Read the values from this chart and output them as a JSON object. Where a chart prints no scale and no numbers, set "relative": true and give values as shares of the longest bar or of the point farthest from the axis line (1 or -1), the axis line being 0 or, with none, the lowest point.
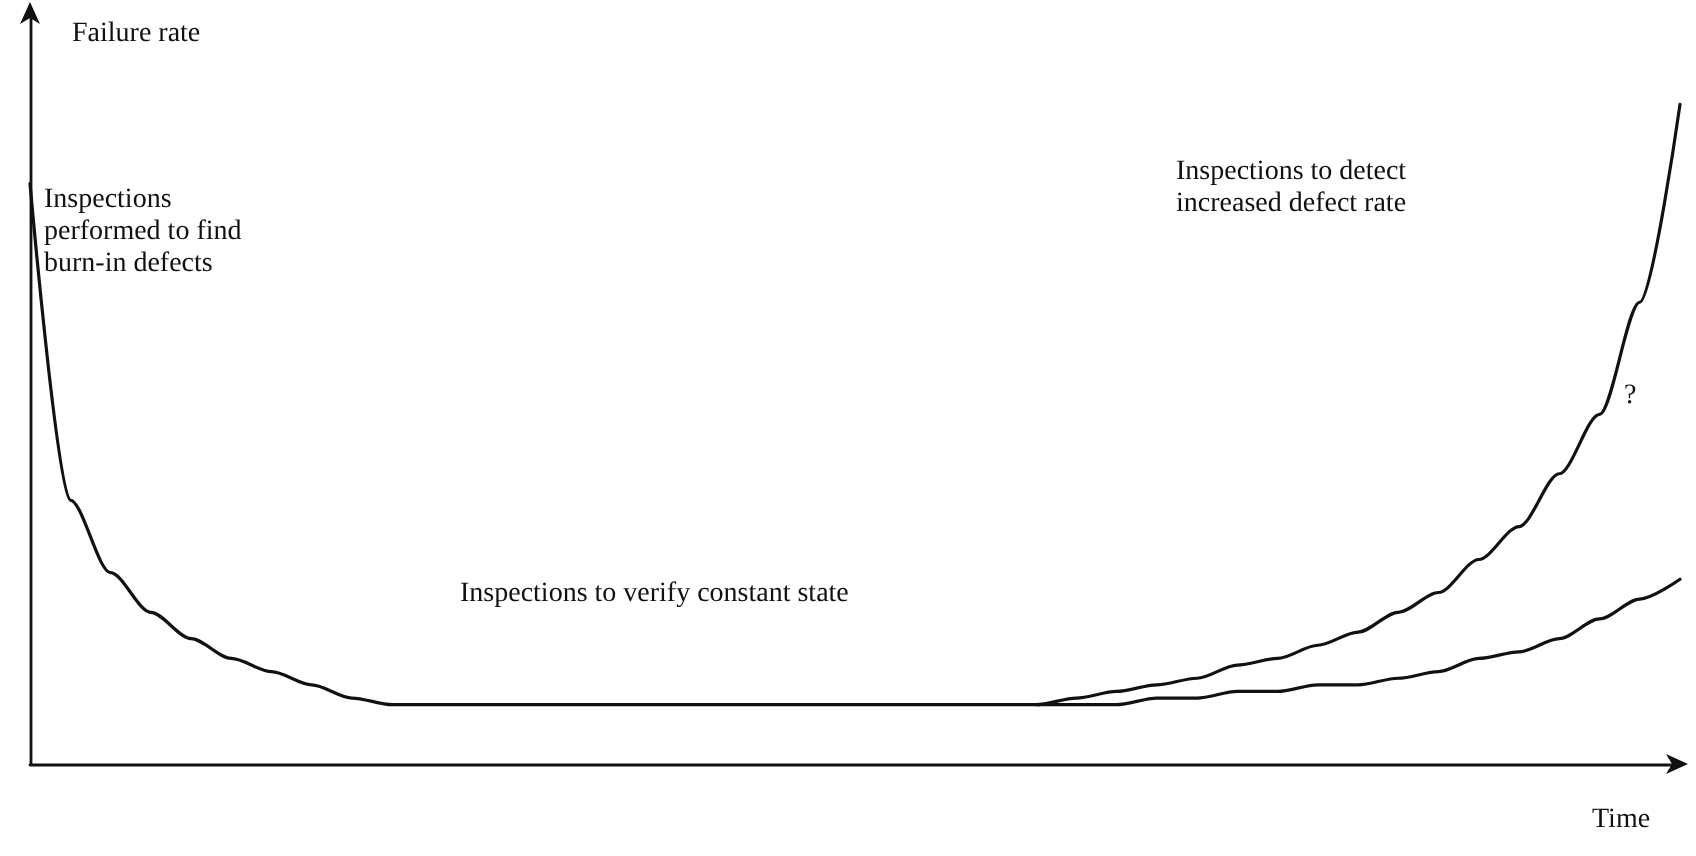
{
  "chart_data": {
    "type": "line",
    "relative": true,
    "xlabel": "Time",
    "ylabel": "Failure rate",
    "categories": [
      null,
      null,
      null,
      null,
      null,
      null,
      null,
      null,
      null,
      null,
      null,
      null,
      null,
      null,
      null,
      null,
      null,
      null,
      null,
      null,
      null,
      null,
      null,
      null,
      null,
      null,
      null,
      null,
      null,
      null,
      null,
      null,
      null,
      null,
      null,
      null,
      null,
      null,
      null,
      null,
      null,
      null
    ],
    "series": [
      {
        "color": "#111111",
        "values": [
          0.88,
          0.4,
          0.29,
          0.23,
          0.19,
          0.16,
          0.14,
          0.12,
          0.1,
          0.09,
          0.09,
          0.09,
          0.09,
          0.09,
          0.09,
          0.09,
          0.09,
          0.09,
          0.09,
          0.09,
          0.09,
          0.09,
          0.09,
          0.09,
          0.09,
          0.09,
          0.1,
          0.11,
          0.12,
          0.13,
          0.15,
          0.16,
          0.18,
          0.2,
          0.23,
          0.26,
          0.31,
          0.36,
          0.44,
          0.53,
          0.7,
          1.0
        ]
      },
      {
        "color": "#111111",
        "values": [
          null,
          null,
          null,
          null,
          null,
          null,
          null,
          null,
          null,
          null,
          null,
          null,
          null,
          null,
          null,
          null,
          null,
          null,
          null,
          null,
          null,
          null,
          null,
          null,
          null,
          0.09,
          0.09,
          0.09,
          0.1,
          0.1,
          0.11,
          0.11,
          0.12,
          0.12,
          0.13,
          0.14,
          0.16,
          0.17,
          0.19,
          0.22,
          0.25,
          0.28
        ]
      }
    ],
    "annotations": [
      "Inspections\nperformed to find\nburn-in defects",
      "Inspections to verify constant state",
      "Inspections to detect\nincreased defect rate",
      "?"
    ],
    "marker": "none",
    "line_style": "solid",
    "grid": false
  }
}
